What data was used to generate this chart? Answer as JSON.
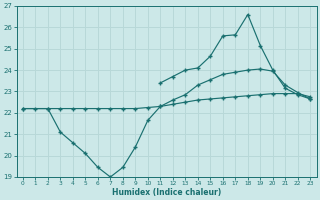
{
  "xlabel": "Humidex (Indice chaleur)",
  "bg_color": "#cce8e8",
  "grid_color": "#b8d8d8",
  "line_color": "#1a7070",
  "xlim": [
    -0.5,
    23.5
  ],
  "ylim": [
    19,
    27
  ],
  "yticks": [
    19,
    20,
    21,
    22,
    23,
    24,
    25,
    26,
    27
  ],
  "xticks": [
    0,
    1,
    2,
    3,
    4,
    5,
    6,
    7,
    8,
    9,
    10,
    11,
    12,
    13,
    14,
    15,
    16,
    17,
    18,
    19,
    20,
    21,
    22,
    23
  ],
  "line1_x": [
    0,
    1,
    2,
    3,
    4,
    5,
    6,
    7,
    8,
    9,
    10,
    11,
    12,
    13,
    14,
    15,
    16,
    17,
    18,
    19,
    20,
    21,
    22,
    23
  ],
  "line1_y": [
    22.2,
    22.2,
    22.2,
    22.2,
    22.2,
    22.2,
    22.2,
    22.2,
    22.2,
    22.2,
    22.25,
    22.3,
    22.4,
    22.5,
    22.6,
    22.65,
    22.7,
    22.75,
    22.8,
    22.85,
    22.9,
    22.9,
    22.9,
    22.75
  ],
  "line2_x": [
    0,
    2,
    3,
    4,
    5,
    6,
    7,
    8,
    9,
    10,
    11,
    12,
    13,
    14,
    15,
    16,
    17,
    18,
    19,
    20,
    21,
    22,
    23
  ],
  "line2_y": [
    22.2,
    22.2,
    21.1,
    20.6,
    20.1,
    19.45,
    19.0,
    19.45,
    20.4,
    21.65,
    22.3,
    22.6,
    22.85,
    23.3,
    23.55,
    23.8,
    23.9,
    24.0,
    24.05,
    23.95,
    23.3,
    22.95,
    22.65
  ],
  "line3_x": [
    11,
    12,
    13,
    14,
    15,
    16,
    17,
    18,
    19,
    20,
    21,
    22,
    23
  ],
  "line3_y": [
    23.4,
    23.7,
    24.0,
    24.1,
    24.65,
    25.6,
    25.65,
    26.6,
    25.15,
    24.0,
    23.15,
    22.85,
    22.65
  ]
}
